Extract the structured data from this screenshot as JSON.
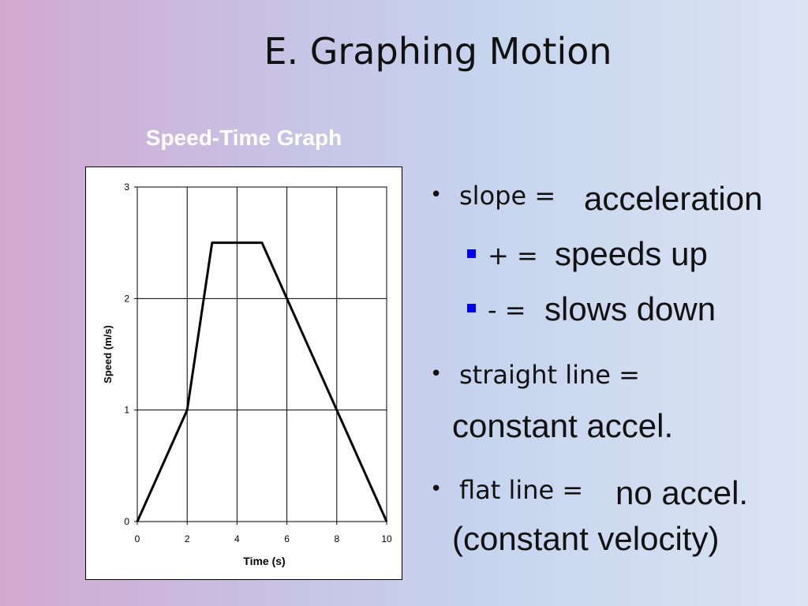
{
  "slide": {
    "title": "E. Graphing Motion"
  },
  "chart_data": {
    "type": "line",
    "title": "Speed-Time Graph",
    "xlabel": "Time (s)",
    "ylabel": "Speed (m/s)",
    "xlim": [
      0,
      10
    ],
    "ylim": [
      0,
      3
    ],
    "xticks": [
      0,
      2,
      4,
      6,
      8,
      10
    ],
    "yticks": [
      0,
      1,
      2,
      3
    ],
    "grid": true,
    "series": [
      {
        "x": [
          0,
          2,
          3,
          5,
          10
        ],
        "y": [
          0,
          1,
          2.5,
          2.5,
          0
        ]
      }
    ]
  },
  "bullets": {
    "b1": {
      "lead": "slope =",
      "value": "acceleration"
    },
    "b1a": {
      "lead": "+ =",
      "value": "speeds up"
    },
    "b1b": {
      "lead": "- =",
      "value": "slows down"
    },
    "b2": {
      "lead": "straight line =",
      "value": "constant accel."
    },
    "b3": {
      "lead": "flat line =",
      "value": "no accel.",
      "value2": "(constant velocity)"
    },
    "bullet_char": "•"
  },
  "colors": {
    "sub_bullet": "#0000ee",
    "chart_title": "#ffffff"
  }
}
